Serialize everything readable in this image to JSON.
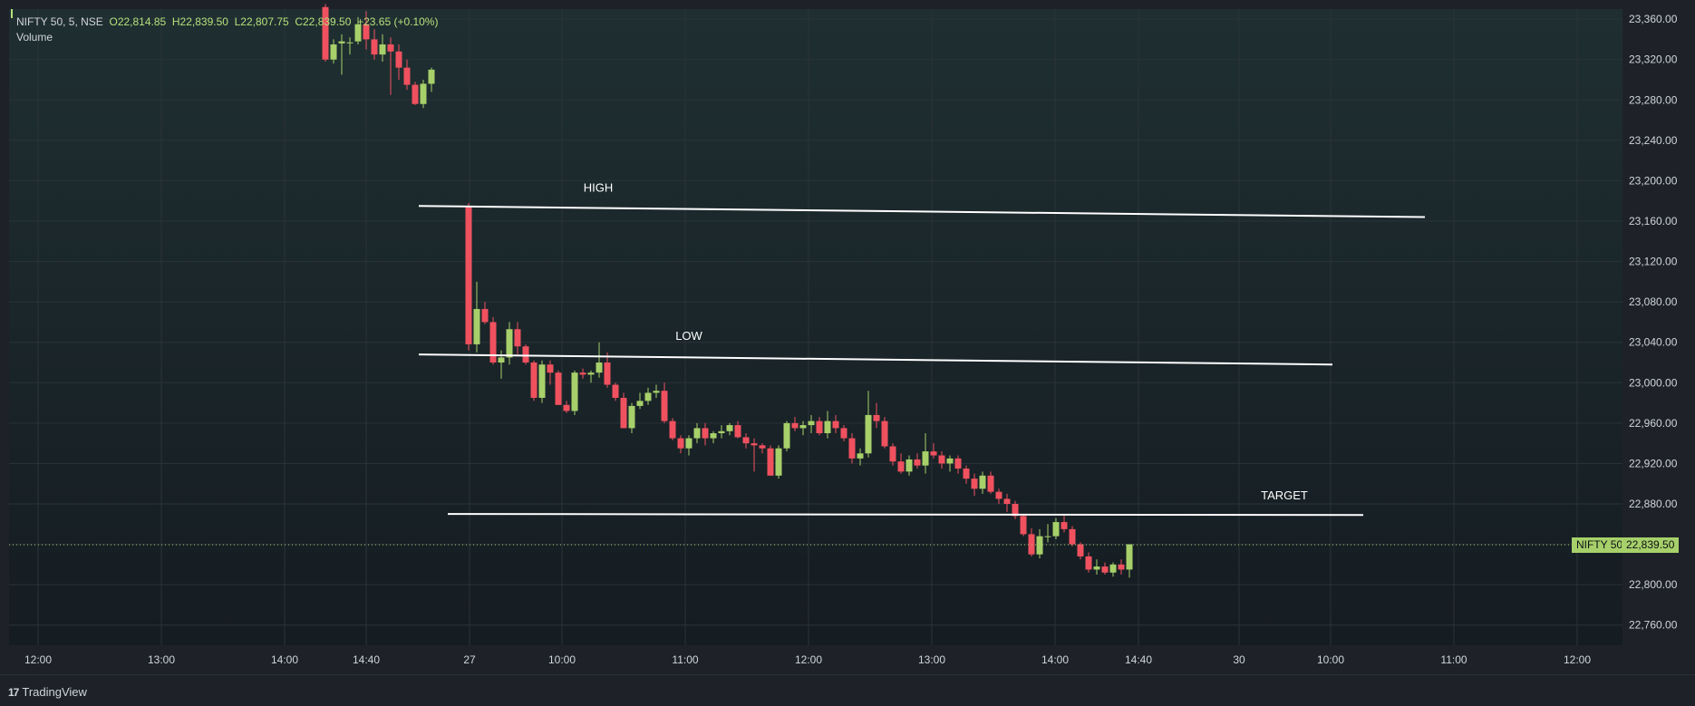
{
  "legend": {
    "symbol": "NIFTY 50, 5, NSE",
    "open": "O22,814.85",
    "high": "H22,839.50",
    "low": "L22,807.75",
    "close": "C22,839.50",
    "change": "+23.65 (+0.10%)",
    "volume_label": "Volume"
  },
  "price_tag": {
    "name": "NIFTY 50",
    "value": "22,839.50"
  },
  "footer": {
    "logo_mark": "17",
    "brand": "TradingView"
  },
  "colors": {
    "up": "#a7d06a",
    "down": "#f0515f",
    "background": "#1a2428",
    "grid": "#2a3338",
    "text": "#d1d4dc"
  },
  "chart_data": {
    "type": "candlestick",
    "y_axis": {
      "range": [
        22740,
        23370
      ],
      "ticks": [
        23360,
        23320,
        23280,
        23240,
        23200,
        23160,
        23120,
        23080,
        23040,
        23000,
        22960,
        22920,
        22880,
        22840,
        22800,
        22760
      ],
      "tick_labels": [
        "23,360.00",
        "23,320.00",
        "23,280.00",
        "23,240.00",
        "23,200.00",
        "23,160.00",
        "23,120.00",
        "23,080.00",
        "23,040.00",
        "23,000.00",
        "22,960.00",
        "22,920.00",
        "22,880.00",
        "22,840.00",
        "22,800.00",
        "22,760.00"
      ]
    },
    "x_axis": {
      "tick_labels": [
        "12:00",
        "13:00",
        "14:00",
        "14:40",
        "27",
        "10:00",
        "11:00",
        "12:00",
        "13:00",
        "14:00",
        "14:40",
        "30",
        "10:00",
        "11:00",
        "12:00"
      ]
    },
    "grid": true,
    "annotations": [
      {
        "label": "HIGH",
        "from": 23175,
        "to": 23164
      },
      {
        "label": "LOW",
        "from": 23028,
        "to": 23018
      },
      {
        "label": "TARGET",
        "from": 22870,
        "to": 22869
      }
    ],
    "last_price": 22839.5,
    "candles": [
      [
        23372,
        23375,
        23318,
        23320
      ],
      [
        23320,
        23340,
        23316,
        23335
      ],
      [
        23336,
        23345,
        23305,
        23338
      ],
      [
        23337,
        23342,
        23325,
        23337
      ],
      [
        23338,
        23362,
        23335,
        23355
      ],
      [
        23355,
        23368,
        23330,
        23340
      ],
      [
        23340,
        23350,
        23320,
        23325
      ],
      [
        23325,
        23345,
        23318,
        23335
      ],
      [
        23335,
        23342,
        23285,
        23328
      ],
      [
        23328,
        23335,
        23300,
        23312
      ],
      [
        23312,
        23320,
        23290,
        23295
      ],
      [
        23295,
        23298,
        23275,
        23276
      ],
      [
        23276,
        23300,
        23272,
        23296
      ],
      [
        23296,
        23312,
        23288,
        23310
      ],
      [
        23175,
        23178,
        23032,
        23038
      ],
      [
        23038,
        23100,
        23030,
        23073
      ],
      [
        23073,
        23080,
        23058,
        23060
      ],
      [
        23060,
        23065,
        23018,
        23020
      ],
      [
        23020,
        23032,
        23004,
        23025
      ],
      [
        23025,
        23060,
        23018,
        23053
      ],
      [
        23053,
        23060,
        23028,
        23036
      ],
      [
        23036,
        23038,
        23018,
        23020
      ],
      [
        23020,
        23022,
        22982,
        22985
      ],
      [
        22985,
        23022,
        22980,
        23018
      ],
      [
        23018,
        23022,
        22998,
        23010
      ],
      [
        23010,
        23012,
        22978,
        22978
      ],
      [
        22978,
        22982,
        22970,
        22972
      ],
      [
        22972,
        23012,
        22968,
        23010
      ],
      [
        23010,
        23014,
        23004,
        23008
      ],
      [
        23008,
        23012,
        23000,
        23010
      ],
      [
        23010,
        23040,
        23005,
        23020
      ],
      [
        23020,
        23030,
        22995,
        22998
      ],
      [
        22998,
        23000,
        22982,
        22985
      ],
      [
        22985,
        22990,
        22955,
        22955
      ],
      [
        22955,
        22980,
        22950,
        22977
      ],
      [
        22977,
        22990,
        22974,
        22982
      ],
      [
        22982,
        22995,
        22978,
        22990
      ],
      [
        22990,
        22998,
        22985,
        22992
      ],
      [
        22992,
        23000,
        22960,
        22962
      ],
      [
        22962,
        22965,
        22943,
        22945
      ],
      [
        22945,
        22948,
        22930,
        22935
      ],
      [
        22935,
        22948,
        22928,
        22945
      ],
      [
        22945,
        22960,
        22940,
        22955
      ],
      [
        22955,
        22960,
        22938,
        22945
      ],
      [
        22945,
        22952,
        22940,
        22950
      ],
      [
        22950,
        22958,
        22945,
        22952
      ],
      [
        22952,
        22960,
        22948,
        22958
      ],
      [
        22958,
        22962,
        22945,
        22946
      ],
      [
        22946,
        22950,
        22935,
        22940
      ],
      [
        22940,
        22945,
        22912,
        22938
      ],
      [
        22938,
        22940,
        22930,
        22935
      ],
      [
        22935,
        22938,
        22908,
        22908
      ],
      [
        22908,
        22938,
        22905,
        22935
      ],
      [
        22935,
        22962,
        22932,
        22960
      ],
      [
        22960,
        22966,
        22952,
        22955
      ],
      [
        22955,
        22962,
        22948,
        22958
      ],
      [
        22958,
        22968,
        22950,
        22962
      ],
      [
        22962,
        22966,
        22948,
        22950
      ],
      [
        22950,
        22972,
        22945,
        22962
      ],
      [
        22962,
        22968,
        22950,
        22955
      ],
      [
        22955,
        22958,
        22942,
        22945
      ],
      [
        22945,
        22950,
        22920,
        22925
      ],
      [
        22925,
        22935,
        22918,
        22930
      ],
      [
        22930,
        22992,
        22926,
        22968
      ],
      [
        22968,
        22980,
        22955,
        22962
      ],
      [
        22962,
        22966,
        22935,
        22937
      ],
      [
        22937,
        22940,
        22918,
        22922
      ],
      [
        22922,
        22930,
        22910,
        22912
      ],
      [
        22912,
        22928,
        22908,
        22924
      ],
      [
        22924,
        22930,
        22915,
        22918
      ],
      [
        22918,
        22950,
        22910,
        22932
      ],
      [
        22932,
        22940,
        22925,
        22928
      ],
      [
        22928,
        22932,
        22915,
        22920
      ],
      [
        22920,
        22928,
        22912,
        22925
      ],
      [
        22925,
        22928,
        22910,
        22915
      ],
      [
        22915,
        22918,
        22900,
        22905
      ],
      [
        22905,
        22910,
        22888,
        22895
      ],
      [
        22895,
        22912,
        22890,
        22908
      ],
      [
        22908,
        22912,
        22890,
        22892
      ],
      [
        22892,
        22895,
        22880,
        22885
      ],
      [
        22885,
        22890,
        22872,
        22880
      ],
      [
        22880,
        22883,
        22865,
        22868
      ],
      [
        22868,
        22870,
        22848,
        22850
      ],
      [
        22850,
        22856,
        22828,
        22830
      ],
      [
        22830,
        22855,
        22826,
        22848
      ],
      [
        22848,
        22860,
        22842,
        22848
      ],
      [
        22848,
        22866,
        22845,
        22862
      ],
      [
        22862,
        22870,
        22852,
        22855
      ],
      [
        22855,
        22858,
        22838,
        22840
      ],
      [
        22840,
        22842,
        22825,
        22828
      ],
      [
        22828,
        22832,
        22812,
        22815
      ],
      [
        22815,
        22825,
        22810,
        22818
      ],
      [
        22818,
        22822,
        22810,
        22812
      ],
      [
        22812,
        22822,
        22808,
        22820
      ],
      [
        22820,
        22825,
        22810,
        22815
      ],
      [
        22815,
        22840,
        22807,
        22840
      ]
    ]
  }
}
